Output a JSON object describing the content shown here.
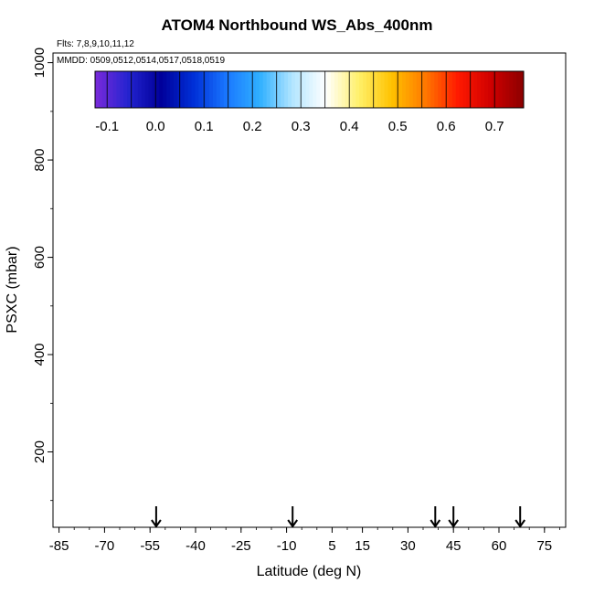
{
  "chart_data": {
    "type": "heatmap",
    "title": "ATOM4 Northbound WS_Abs_400nm",
    "notes": [
      "Flts: 7,8,9,10,11,12",
      "MMDD: 0509,0512,0514,0517,0518,0519"
    ],
    "xlabel": "Latitude (deg N)",
    "ylabel": "PSXC (mbar)",
    "x_ticks": [
      -85,
      -70,
      -55,
      -40,
      -25,
      -10,
      5,
      15,
      30,
      45,
      60,
      75
    ],
    "y_ticks": [
      200,
      400,
      600,
      800,
      1000
    ],
    "xlim": [
      -87,
      82
    ],
    "ylim": [
      1020,
      45
    ],
    "colorbar": {
      "ticks": [
        -0.1,
        0.0,
        0.1,
        0.2,
        0.3,
        0.4,
        0.5,
        0.6,
        0.7
      ],
      "range": [
        -0.125,
        0.76
      ],
      "colors": [
        "#7a2ad9",
        "#2424d0",
        "#00009a",
        "#0030d8",
        "#1a78ff",
        "#30b0ff",
        "#b4e6ff",
        "#ffffff",
        "#fff06a",
        "#ffc200",
        "#ff7a00",
        "#ff1a00",
        "#d00000",
        "#8b0000"
      ]
    },
    "arrows_lat": [
      -53,
      -8,
      39,
      45,
      67
    ],
    "grid": false,
    "legend": "none"
  }
}
